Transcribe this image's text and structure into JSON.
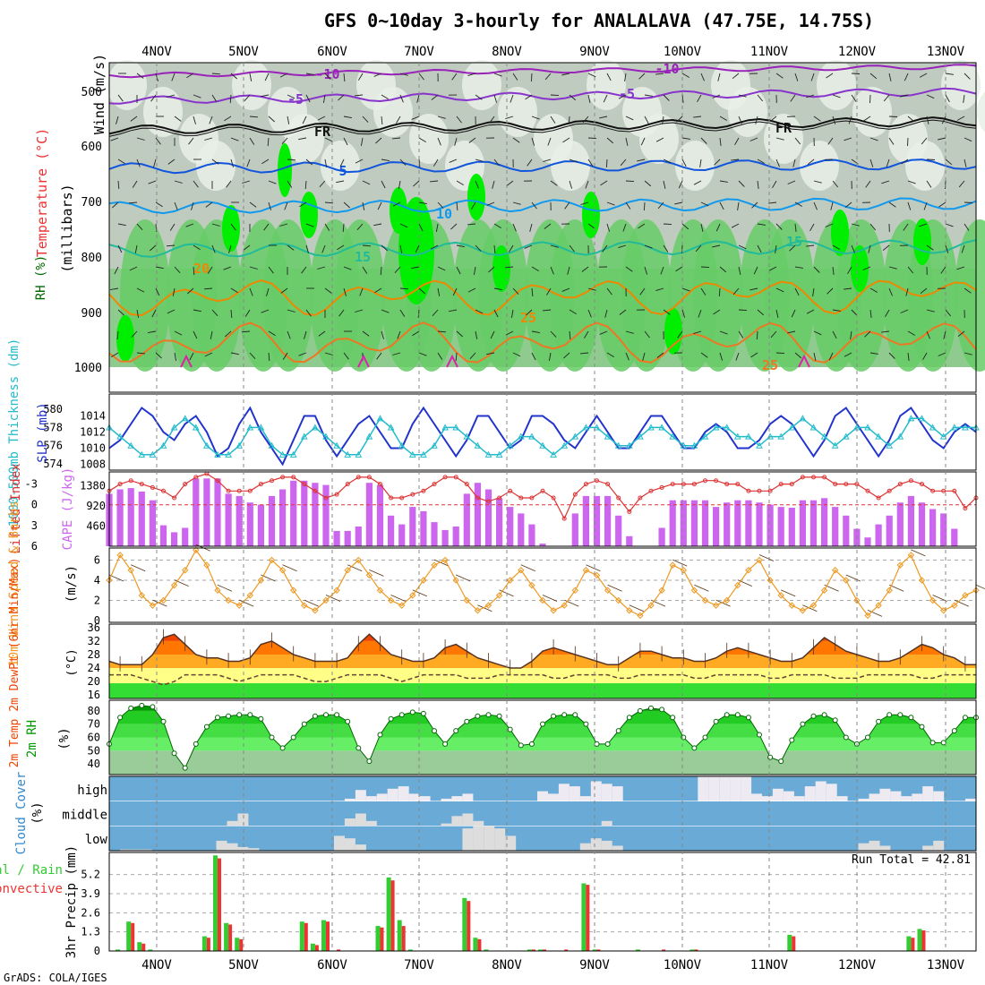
{
  "title": "GFS 0~10day 3-hourly for ANALALAVA (47.75E, 14.75S)",
  "credit": "GrADS: COLA/IGES",
  "run_total_label": "Run Total = 42.81",
  "day_labels": [
    "4NOV",
    "5NOV",
    "6NOV",
    "7NOV",
    "8NOV",
    "9NOV",
    "10NOV",
    "11NOV",
    "12NOV",
    "13NOV"
  ],
  "panels": {
    "upper": {
      "ylabel_wind": "Wind (m/s)",
      "ylabel_temp": "Temperature (°C)",
      "ylabel_rh": "RH (%)",
      "ylabel_units": "(millibars)",
      "yticks": [
        "500",
        "600",
        "700",
        "800",
        "900",
        "1000"
      ],
      "isotherm_labels": [
        "-10",
        "-5",
        "FR",
        "5",
        "10",
        "15",
        "20",
        "25",
        "-10",
        "-5",
        "FR",
        "15",
        "25"
      ]
    },
    "thickness": {
      "ylabel_left": "1000-500mb Thickness (dm)",
      "ylabel_right": "SLP (mb)",
      "ticks_left": [
        "580",
        "578",
        "576",
        "574"
      ],
      "ticks_right": [
        "1014",
        "1012",
        "1010",
        "1008"
      ]
    },
    "cape": {
      "ylabel_left": "Lifted Index",
      "ylabel_right": "CAPE (J/kg)",
      "ticks_left": [
        "-3",
        "0",
        "3",
        "6"
      ],
      "ticks_right": [
        "1380",
        "920",
        "460"
      ]
    },
    "wind10": {
      "ylabel": "10m Wind Speed & Barbs",
      "ylabel_units": "(m/s)",
      "yticks": [
        "6",
        "4",
        "2",
        "0"
      ]
    },
    "temp2m": {
      "ylabel": "2m Temp 2m DewPt (6hr Min/Max)",
      "ylabel_units": "(°C)",
      "yticks": [
        "36",
        "32",
        "28",
        "24",
        "20",
        "16"
      ]
    },
    "rh2m": {
      "ylabel": "2m RH",
      "ylabel_units": "(%)",
      "yticks": [
        "80",
        "70",
        "60",
        "50",
        "40"
      ]
    },
    "cloud": {
      "ylabel": "Cloud Cover",
      "ylabel_units": "(%)",
      "levels": [
        "high",
        "middle",
        "low"
      ]
    },
    "precip": {
      "ylabel": "3hr Precip (mm)",
      "ylabel_left": "Total / Rain",
      "ylabel_left2": "Convective",
      "yticks": [
        "5.2",
        "3.9",
        "2.6",
        "1.3",
        "0"
      ]
    }
  },
  "colors": {
    "rh_light": "#e8f0e8",
    "rh_mid": "#c0cbc0",
    "rh_dark": "#a8b4a8",
    "rh_green": "#66cc66",
    "rh_bright": "#00ee00",
    "slp_line": "#2233cc",
    "thickness_line": "#22bbcc",
    "lifted_line": "#dd3333",
    "cape_bar": "#cc66ee",
    "wind_line": "#ee9922",
    "cloud_bg": "#6aaad6",
    "cloud_fill": "#dddddd",
    "precip_total": "#33cc33",
    "precip_conv": "#ee3333"
  },
  "chart_data": {
    "type": "meteogram",
    "x": "3-hourly steps, 81 steps covering 3NOV 12Z to 13NOV 12Z",
    "series": {
      "slp_mb": [
        1010,
        1011,
        1013,
        1015,
        1014,
        1012,
        1011,
        1013,
        1014,
        1012,
        1009,
        1010,
        1013,
        1015,
        1012,
        1010,
        1008,
        1011,
        1014,
        1014,
        1011,
        1009,
        1011,
        1013,
        1014,
        1012,
        1010,
        1010,
        1013,
        1015,
        1013,
        1011,
        1009,
        1011,
        1014,
        1014,
        1012,
        1010,
        1011,
        1014,
        1014,
        1013,
        1011,
        1010,
        1012,
        1014,
        1012,
        1010,
        1010,
        1012,
        1014,
        1014,
        1012,
        1010,
        1010,
        1012,
        1013,
        1012,
        1010,
        1010,
        1011,
        1013,
        1014,
        1013,
        1011,
        1009,
        1011,
        1014,
        1015,
        1013,
        1011,
        1009,
        1011,
        1014,
        1015,
        1013,
        1011,
        1010,
        1012,
        1013,
        1012
      ],
      "thickness_dm": [
        578,
        577,
        576,
        575,
        575,
        576,
        578,
        579,
        578,
        576,
        575,
        575,
        576,
        578,
        578,
        576,
        575,
        575,
        577,
        578,
        577,
        576,
        575,
        575,
        577,
        579,
        578,
        576,
        575,
        575,
        576,
        578,
        578,
        577,
        576,
        575,
        575,
        576,
        577,
        577,
        576,
        575,
        576,
        577,
        578,
        578,
        577,
        576,
        576,
        577,
        578,
        578,
        577,
        576,
        576,
        577,
        578,
        578,
        577,
        577,
        576,
        577,
        577,
        578,
        579,
        578,
        577,
        576,
        577,
        578,
        578,
        577,
        576,
        577,
        579,
        579,
        578,
        577,
        578,
        578,
        578
      ],
      "lifted_index": [
        -2,
        -3,
        -3.5,
        -3,
        -2.5,
        -2,
        -1,
        -3,
        -4,
        -4.5,
        -3.5,
        -2,
        -2,
        -2,
        -3,
        -3.5,
        -4,
        -4,
        -3,
        -2,
        -1,
        -1.5,
        -3,
        -4,
        -4,
        -3,
        -1,
        -1,
        -1.5,
        -2,
        -3,
        -4,
        -4,
        -3,
        -1,
        -0.5,
        -1,
        -2,
        -1,
        -1,
        -2,
        -1,
        2,
        -1.5,
        -3,
        -3.5,
        -3,
        -1,
        1,
        -1,
        -2,
        -2.5,
        -3,
        -3,
        -3,
        -3.5,
        -3.5,
        -3,
        -3,
        -2,
        -2,
        -2,
        -3,
        -3,
        -4,
        -4,
        -4,
        -3,
        -3,
        -3,
        -2,
        -1,
        -2,
        -3,
        -3.5,
        -3,
        -2,
        -2,
        -2,
        0.5,
        -1
      ],
      "cape_jkg": [
        1200,
        1300,
        1330,
        1250,
        1050,
        480,
        320,
        420,
        1550,
        1550,
        1550,
        1200,
        1150,
        1000,
        950,
        1150,
        1300,
        1500,
        1500,
        1450,
        1400,
        350,
        350,
        450,
        1450,
        1400,
        700,
        500,
        900,
        800,
        550,
        370,
        450,
        1200,
        1450,
        1300,
        1100,
        900,
        750,
        500,
        60,
        0,
        0,
        750,
        1150,
        1150,
        1150,
        700,
        230,
        0,
        0,
        420,
        1050,
        1050,
        1050,
        1050,
        900,
        1000,
        1050,
        1050,
        1000,
        950,
        900,
        880,
        1050,
        1050,
        1100,
        900,
        700,
        400,
        200,
        500,
        700,
        1000,
        1150,
        1000,
        850,
        750,
        400,
        0,
        0
      ],
      "wind10_ms": [
        4,
        6.5,
        5,
        2.5,
        1.5,
        2,
        3.5,
        5,
        7,
        5.5,
        3,
        2,
        1.5,
        2.5,
        4,
        6,
        5,
        3,
        1.5,
        1,
        2,
        3,
        5,
        6,
        4.5,
        3,
        2,
        1.5,
        2.5,
        4,
        5.5,
        6,
        4,
        2,
        1,
        1.5,
        2.5,
        4,
        5,
        3.5,
        2,
        1,
        1.5,
        3,
        5,
        4.5,
        3,
        2,
        1,
        0.5,
        1.5,
        3,
        5.5,
        5,
        3,
        2,
        1.5,
        2,
        3.5,
        5,
        6,
        4,
        2.5,
        1.5,
        1,
        1.5,
        3,
        5,
        4,
        2,
        0.5,
        1.5,
        3,
        5.5,
        6.5,
        4,
        2,
        1,
        1.5,
        2.5,
        3
      ],
      "temp2m_c": [
        26,
        25,
        25,
        25,
        28,
        33,
        34,
        31,
        28,
        27,
        27,
        26,
        26,
        27,
        31,
        32,
        30,
        28,
        27,
        26,
        26,
        26,
        27,
        31,
        34,
        31,
        28,
        27,
        26,
        26,
        27,
        30,
        31,
        29,
        27,
        26,
        25,
        24,
        24,
        26,
        29,
        30,
        29,
        28,
        27,
        26,
        25,
        25,
        27,
        29,
        29,
        28,
        27,
        27,
        26,
        26,
        27,
        29,
        30,
        29,
        28,
        27,
        26,
        26,
        27,
        30,
        33,
        31,
        29,
        28,
        27,
        26,
        26,
        27,
        29,
        31,
        30,
        28,
        27,
        25,
        25
      ],
      "dewpt2m_c": [
        22,
        22,
        22,
        21,
        20,
        19,
        20,
        22,
        22,
        22,
        22,
        21,
        20,
        21,
        22,
        22,
        22,
        22,
        21,
        20,
        20,
        21,
        22,
        22,
        22,
        22,
        21,
        20,
        21,
        22,
        22,
        22,
        22,
        21,
        21,
        21,
        22,
        22,
        22,
        22,
        22,
        21,
        21,
        22,
        22,
        22,
        22,
        21,
        21,
        22,
        22,
        22,
        22,
        22,
        21,
        21,
        22,
        22,
        22,
        22,
        22,
        21,
        21,
        22,
        22,
        22,
        22,
        21,
        21,
        21,
        22,
        22,
        22,
        22,
        22,
        21,
        21,
        22,
        22,
        22,
        22
      ],
      "rh2m_pct": [
        55,
        75,
        82,
        84,
        83,
        72,
        48,
        37,
        55,
        68,
        75,
        76,
        77,
        77,
        74,
        60,
        52,
        60,
        70,
        76,
        77,
        77,
        72,
        52,
        42,
        62,
        74,
        77,
        79,
        78,
        65,
        55,
        65,
        72,
        76,
        77,
        76,
        66,
        54,
        55,
        70,
        76,
        77,
        77,
        70,
        55,
        55,
        65,
        75,
        80,
        82,
        81,
        75,
        60,
        52,
        60,
        72,
        77,
        77,
        75,
        62,
        45,
        42,
        58,
        70,
        76,
        77,
        73,
        60,
        55,
        60,
        72,
        77,
        77,
        75,
        68,
        56,
        56,
        65,
        75,
        75
      ],
      "cloud_high_pct": [
        0,
        0,
        0,
        0,
        0,
        0,
        0,
        0,
        0,
        0,
        0,
        0,
        0,
        0,
        0,
        0,
        0,
        0,
        0,
        0,
        0,
        0,
        10,
        45,
        20,
        30,
        50,
        60,
        30,
        20,
        0,
        10,
        20,
        30,
        0,
        0,
        0,
        0,
        0,
        0,
        40,
        30,
        70,
        60,
        20,
        80,
        70,
        60,
        0,
        0,
        0,
        0,
        0,
        0,
        0,
        100,
        100,
        100,
        100,
        100,
        30,
        20,
        50,
        40,
        20,
        60,
        80,
        70,
        20,
        0,
        10,
        30,
        50,
        40,
        20,
        30,
        60,
        40,
        0,
        0,
        10
      ],
      "cloud_middle_pct": [
        0,
        0,
        0,
        0,
        0,
        0,
        0,
        0,
        0,
        0,
        0,
        20,
        50,
        0,
        0,
        0,
        0,
        0,
        0,
        0,
        0,
        0,
        30,
        50,
        20,
        0,
        0,
        0,
        0,
        0,
        0,
        10,
        40,
        50,
        20,
        0,
        0,
        0,
        0,
        0,
        0,
        0,
        0,
        0,
        0,
        0,
        20,
        0,
        0,
        0,
        0,
        0,
        0,
        0,
        0,
        0,
        0,
        0,
        0,
        0,
        0,
        0,
        0,
        0,
        0,
        0,
        0,
        0,
        0,
        0,
        0,
        0,
        0,
        0,
        0,
        0,
        0,
        0,
        0,
        0,
        0
      ],
      "cloud_low_pct": [
        0,
        5,
        5,
        5,
        0,
        0,
        0,
        0,
        0,
        0,
        40,
        30,
        15,
        10,
        0,
        0,
        0,
        0,
        0,
        0,
        0,
        60,
        50,
        25,
        0,
        0,
        0,
        0,
        0,
        0,
        0,
        0,
        0,
        90,
        100,
        100,
        90,
        60,
        0,
        0,
        0,
        0,
        0,
        0,
        30,
        50,
        40,
        20,
        0,
        0,
        0,
        0,
        0,
        0,
        0,
        0,
        0,
        0,
        0,
        0,
        0,
        0,
        0,
        0,
        0,
        0,
        0,
        0,
        0,
        0,
        30,
        40,
        20,
        0,
        0,
        0,
        20,
        40,
        0,
        0,
        0
      ],
      "precip_total_mm": [
        0,
        0.1,
        2.0,
        0.6,
        0.1,
        0,
        0,
        0,
        0,
        1.0,
        6.5,
        1.9,
        0.9,
        0,
        0,
        0,
        0,
        0,
        2.0,
        0.5,
        2.1,
        0,
        0,
        0,
        0,
        1.7,
        5.0,
        2.1,
        0.1,
        0,
        0,
        0,
        0,
        3.6,
        0.9,
        0.1,
        0,
        0,
        0,
        0.1,
        0.1,
        0,
        0,
        0,
        4.6,
        0.1,
        0,
        0,
        0,
        0.1,
        0,
        0,
        0,
        0,
        0.1,
        0,
        0,
        0,
        0,
        0,
        0,
        0,
        0,
        1.1,
        0,
        0,
        0,
        0,
        0,
        0,
        0,
        0,
        0,
        0,
        1.0,
        1.5,
        0,
        0,
        0,
        0,
        0
      ],
      "precip_conv_mm": [
        0,
        0,
        1.9,
        0.5,
        0,
        0,
        0,
        0,
        0,
        0.9,
        6.3,
        1.8,
        0.8,
        0,
        0,
        0,
        0,
        0,
        1.9,
        0.4,
        2.0,
        0.1,
        0,
        0,
        0,
        1.6,
        4.8,
        1.7,
        0,
        0,
        0,
        0,
        0,
        3.4,
        0.8,
        0,
        0,
        0,
        0,
        0.1,
        0.1,
        0,
        0.1,
        0,
        4.5,
        0.1,
        0,
        0,
        0,
        0,
        0,
        0.1,
        0,
        0,
        0.1,
        0,
        0,
        0,
        0,
        0,
        0,
        0,
        0,
        1.0,
        0,
        0,
        0,
        0,
        0,
        0,
        0,
        0,
        0,
        0,
        0.9,
        1.4,
        0,
        0,
        0,
        0,
        0
      ]
    }
  }
}
